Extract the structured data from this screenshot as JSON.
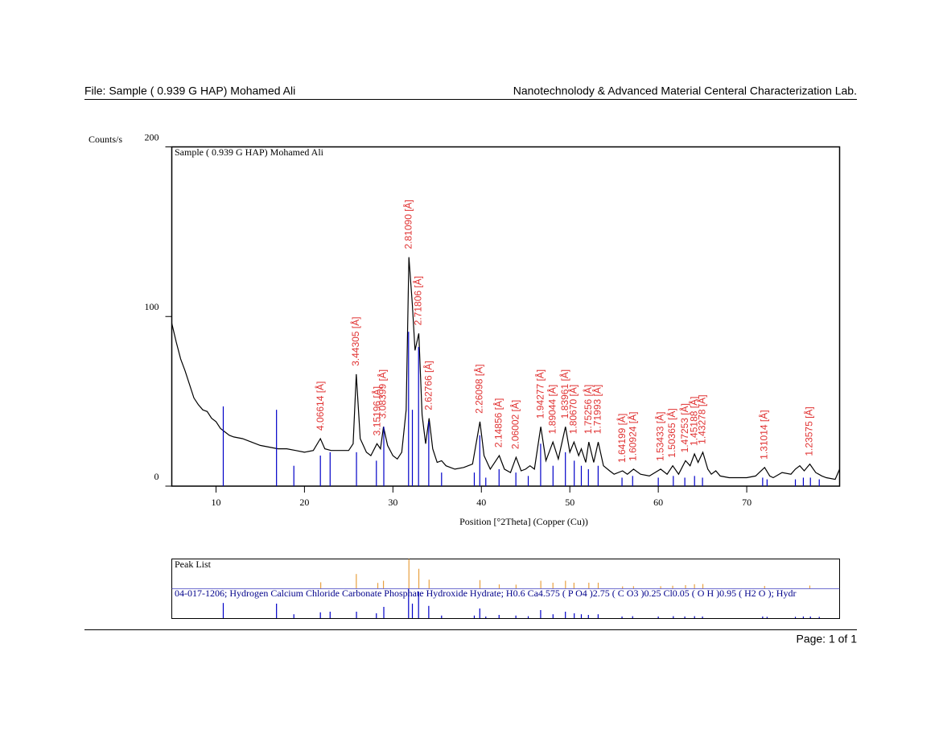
{
  "header": {
    "left": "File: Sample ( 0.939 G HAP) Mohamed Ali",
    "right": "Nanotechnolody & Advanced Material Centeral Characterization Lab."
  },
  "footer": {
    "page": "Page: 1 of 1"
  },
  "chart_data": {
    "type": "line",
    "title": "Sample ( 0.939 G HAP) Mohamed Ali",
    "y_label": "Counts/s",
    "x_label": "Position [°2Theta] (Copper (Cu))",
    "xlim": [
      5,
      80.5
    ],
    "ylim": [
      0,
      200
    ],
    "xticks": [
      10,
      20,
      30,
      40,
      50,
      60,
      70
    ],
    "yticks": [
      0,
      100,
      200
    ],
    "series": [
      {
        "color": "#000000",
        "x": [
          5.0,
          5.5,
          6,
          6.5,
          7,
          7.5,
          8,
          8.5,
          9,
          9.5,
          10,
          10.5,
          11,
          11.5,
          12,
          13,
          14,
          15,
          16,
          17,
          18,
          19,
          20,
          21,
          21.8,
          22.3,
          23,
          24,
          25,
          25.5,
          25.86,
          26.3,
          27,
          27.5,
          28.2,
          28.6,
          28.93,
          29.4,
          30,
          30.5,
          31,
          31.5,
          31.81,
          32.2,
          32.5,
          32.93,
          33.3,
          33.7,
          34.09,
          34.5,
          35,
          35.5,
          36,
          37,
          38,
          39,
          39.84,
          40.3,
          41,
          42.02,
          42.6,
          43.3,
          43.92,
          44.5,
          45,
          45.5,
          46,
          46.72,
          47.3,
          48.09,
          48.7,
          49.51,
          50,
          50.47,
          51,
          51.3,
          51.8,
          52.15,
          52.7,
          53.21,
          53.8,
          54.5,
          55,
          55.96,
          56.5,
          57.2,
          58,
          59,
          60.27,
          61,
          61.63,
          62.3,
          63.08,
          63.6,
          64.09,
          64.5,
          65.04,
          65.6,
          66,
          66.5,
          67,
          68,
          69,
          70,
          71,
          72.02,
          72.6,
          73,
          74,
          75,
          75.5,
          76,
          76.5,
          77.13,
          77.8,
          78.5,
          79,
          80,
          80.5
        ],
        "values": [
          96,
          85,
          75,
          68,
          60,
          52,
          48,
          45,
          44,
          40,
          38,
          34,
          32,
          30,
          29,
          28,
          26,
          24,
          23,
          22,
          22,
          21,
          20,
          21,
          28,
          22,
          21,
          21,
          21,
          25,
          66,
          28,
          20,
          18,
          25,
          22,
          35,
          24,
          18,
          16,
          20,
          45,
          135,
          107,
          80,
          90,
          42,
          25,
          40,
          22,
          14,
          15,
          12,
          10,
          11,
          13,
          38,
          18,
          10,
          18,
          10,
          8,
          17,
          9,
          10,
          12,
          10,
          35,
          15,
          26,
          16,
          35,
          20,
          26,
          18,
          22,
          14,
          26,
          14,
          26,
          12,
          9,
          7,
          9,
          7,
          10,
          7,
          6,
          10,
          7,
          12,
          7,
          15,
          12,
          19,
          14,
          20,
          10,
          7,
          9,
          6,
          5,
          5,
          5,
          6,
          11,
          6,
          5,
          8,
          7,
          10,
          12,
          9,
          13,
          8,
          6,
          5,
          4,
          10
        ]
      },
      {
        "type": "stick",
        "color": "#0000c8",
        "x": [
          10.82,
          16.84,
          18.8,
          21.8,
          22.9,
          25.88,
          28.13,
          28.97,
          31.77,
          32.2,
          32.9,
          34.05,
          35.5,
          39.2,
          39.82,
          40.5,
          42.0,
          43.9,
          45.3,
          46.7,
          48.1,
          49.5,
          50.5,
          51.3,
          52.1,
          53.2,
          55.9,
          57.1,
          60.0,
          61.7,
          63.0,
          64.1,
          65.0,
          71.8,
          72.3,
          75.5,
          76.4,
          77.2,
          78.2
        ],
        "values": [
          47,
          45,
          12,
          18,
          20,
          20,
          15,
          35,
          91,
          45,
          82,
          38,
          8,
          8,
          30,
          5,
          10,
          8,
          6,
          25,
          12,
          20,
          15,
          12,
          10,
          12,
          5,
          6,
          5,
          6,
          5,
          6,
          5,
          5,
          4,
          4,
          5,
          5,
          4
        ]
      }
    ],
    "peaks": {
      "color": "#e03232",
      "stick_color": "#e8a040",
      "x": [
        21.84,
        25.86,
        28.29,
        28.93,
        31.81,
        32.93,
        34.09,
        39.84,
        42.02,
        43.92,
        46.72,
        48.09,
        49.51,
        50.47,
        52.15,
        53.21,
        55.96,
        57.2,
        60.27,
        61.63,
        63.08,
        64.09,
        65.04,
        72.02,
        77.13
      ],
      "values": [
        28,
        66,
        25,
        35,
        135,
        90,
        40,
        38,
        18,
        17,
        35,
        26,
        35,
        26,
        26,
        26,
        9,
        10,
        10,
        12,
        15,
        19,
        20,
        11,
        13
      ],
      "labels": [
        "4.06614 [Å]",
        "3.44305 [Å]",
        "3.15196 [Å]",
        "3.08399 [Å]",
        "2.81090 [Å]",
        "2.71806 [Å]",
        "2.62766 [Å]",
        "2.26098 [Å]",
        "2.14856 [Å]",
        "2.06002 [Å]",
        "1.94277 [Å]",
        "1.89044 [Å]",
        "1.83961 [Å]",
        "1.80670 [Å]",
        "1.75256 [Å]",
        "1.71993 [Å]",
        "1.64199 [Å]",
        "1.60924 [Å]",
        "1.53433 [Å]",
        "1.50365 [Å]",
        "1.47253 [Å]",
        "1.45188 [Å]",
        "1.43278 [Å]",
        "1.31014 [Å]",
        "1.23575 [Å]"
      ]
    },
    "peak_list": {
      "title": "Peak List",
      "reference": "04-017-1206; Hydrogen Calcium Chloride Carbonate Phosphate Hydroxide Hydrate; H0.6 Ca4.575 ( P O4 )2.75 ( C O3 )0.25 Cl0.05 ( O H )0.95 ( H2 O ); Hydr"
    }
  }
}
